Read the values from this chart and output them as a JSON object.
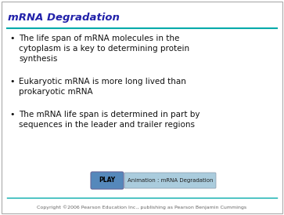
{
  "title": "mRNA Degradation",
  "title_color": "#2222aa",
  "title_fontsize": 9.5,
  "line_color": "#00aaaa",
  "bg_color": "#ffffff",
  "border_color": "#aaaaaa",
  "bullet_color": "#111111",
  "bullet_fontsize": 7.5,
  "bullets": [
    "The life span of mRNA molecules in the\ncytoplasm is a key to determining protein\nsynthesis",
    "Eukaryotic mRNA is more long lived than\nprokaryotic mRNA",
    "The mRNA life span is determined in part by\nsequences in the leader and trailer regions"
  ],
  "play_button_color": "#5588bb",
  "play_button_text": "PLAY",
  "play_button_text_color": "#000000",
  "animation_box_color": "#aaccdd",
  "animation_text": "Animation : mRNA Degradation",
  "animation_text_color": "#222222",
  "footer_text": "Copyright ©2006 Pearson Education Inc., publishing as Pearson Benjamin Cummings",
  "footer_color": "#666666",
  "footer_fontsize": 4.5
}
